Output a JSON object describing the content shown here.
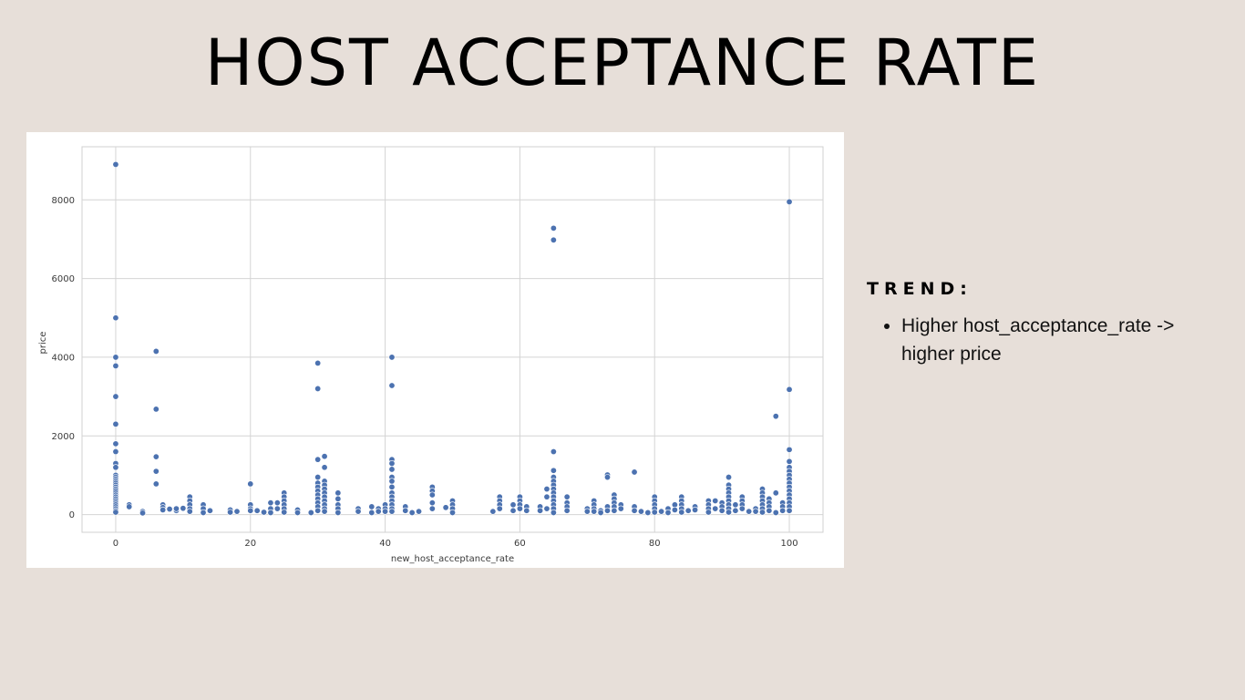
{
  "slide": {
    "title": "HOST ACCEPTANCE RATE",
    "background": "#e7dfd9"
  },
  "sidebar": {
    "heading": "TREND:",
    "bullets": [
      "Higher host_acceptance_rate -> higher price"
    ]
  },
  "chart_data": {
    "type": "scatter",
    "title": "",
    "xlabel": "new_host_acceptance_rate",
    "ylabel": "price",
    "xlim": [
      -5,
      105
    ],
    "ylim": [
      -450,
      9350
    ],
    "xticks": [
      0,
      20,
      40,
      60,
      80,
      100
    ],
    "yticks": [
      0,
      2000,
      4000,
      6000,
      8000
    ],
    "grid": true,
    "marker_color": "#4c72b0",
    "points": [
      [
        0,
        8900
      ],
      [
        0,
        5000
      ],
      [
        0,
        4000
      ],
      [
        0,
        3780
      ],
      [
        0,
        3000
      ],
      [
        0,
        2300
      ],
      [
        0,
        1800
      ],
      [
        0,
        1600
      ],
      [
        0,
        1300
      ],
      [
        0,
        1200
      ],
      [
        0,
        1000
      ],
      [
        0,
        950
      ],
      [
        0,
        900
      ],
      [
        0,
        850
      ],
      [
        0,
        800
      ],
      [
        0,
        750
      ],
      [
        0,
        700
      ],
      [
        0,
        650
      ],
      [
        0,
        600
      ],
      [
        0,
        550
      ],
      [
        0,
        500
      ],
      [
        0,
        450
      ],
      [
        0,
        400
      ],
      [
        0,
        350
      ],
      [
        0,
        300
      ],
      [
        0,
        250
      ],
      [
        0,
        200
      ],
      [
        0,
        150
      ],
      [
        0,
        100
      ],
      [
        0,
        60
      ],
      [
        2,
        250
      ],
      [
        2,
        200
      ],
      [
        4,
        80
      ],
      [
        4,
        40
      ],
      [
        6,
        4150
      ],
      [
        6,
        2680
      ],
      [
        6,
        1470
      ],
      [
        6,
        1100
      ],
      [
        6,
        780
      ],
      [
        7,
        250
      ],
      [
        7,
        180
      ],
      [
        7,
        120
      ],
      [
        8,
        140
      ],
      [
        9,
        100
      ],
      [
        9,
        150
      ],
      [
        10,
        160
      ],
      [
        11,
        450
      ],
      [
        11,
        350
      ],
      [
        11,
        250
      ],
      [
        11,
        150
      ],
      [
        11,
        80
      ],
      [
        13,
        250
      ],
      [
        13,
        150
      ],
      [
        13,
        50
      ],
      [
        14,
        100
      ],
      [
        17,
        120
      ],
      [
        17,
        60
      ],
      [
        18,
        80
      ],
      [
        20,
        780
      ],
      [
        20,
        250
      ],
      [
        20,
        150
      ],
      [
        20,
        100
      ],
      [
        21,
        100
      ],
      [
        22,
        60
      ],
      [
        23,
        300
      ],
      [
        23,
        150
      ],
      [
        23,
        50
      ],
      [
        24,
        300
      ],
      [
        24,
        150
      ],
      [
        25,
        550
      ],
      [
        25,
        450
      ],
      [
        25,
        350
      ],
      [
        25,
        250
      ],
      [
        25,
        150
      ],
      [
        25,
        60
      ],
      [
        27,
        120
      ],
      [
        27,
        50
      ],
      [
        29,
        50
      ],
      [
        30,
        3850
      ],
      [
        30,
        3200
      ],
      [
        30,
        1400
      ],
      [
        30,
        950
      ],
      [
        30,
        800
      ],
      [
        30,
        700
      ],
      [
        30,
        600
      ],
      [
        30,
        500
      ],
      [
        30,
        400
      ],
      [
        30,
        300
      ],
      [
        30,
        200
      ],
      [
        30,
        100
      ],
      [
        31,
        1480
      ],
      [
        31,
        1200
      ],
      [
        31,
        850
      ],
      [
        31,
        750
      ],
      [
        31,
        650
      ],
      [
        31,
        550
      ],
      [
        31,
        450
      ],
      [
        31,
        350
      ],
      [
        31,
        250
      ],
      [
        31,
        150
      ],
      [
        31,
        80
      ],
      [
        33,
        550
      ],
      [
        33,
        400
      ],
      [
        33,
        250
      ],
      [
        33,
        150
      ],
      [
        33,
        50
      ],
      [
        36,
        150
      ],
      [
        36,
        80
      ],
      [
        38,
        200
      ],
      [
        38,
        50
      ],
      [
        39,
        150
      ],
      [
        39,
        80
      ],
      [
        40,
        250
      ],
      [
        40,
        150
      ],
      [
        40,
        80
      ],
      [
        41,
        4000
      ],
      [
        41,
        3280
      ],
      [
        41,
        1400
      ],
      [
        41,
        1300
      ],
      [
        41,
        1150
      ],
      [
        41,
        950
      ],
      [
        41,
        850
      ],
      [
        41,
        700
      ],
      [
        41,
        550
      ],
      [
        41,
        450
      ],
      [
        41,
        350
      ],
      [
        41,
        250
      ],
      [
        41,
        150
      ],
      [
        41,
        80
      ],
      [
        43,
        200
      ],
      [
        43,
        100
      ],
      [
        44,
        50
      ],
      [
        45,
        80
      ],
      [
        47,
        700
      ],
      [
        47,
        600
      ],
      [
        47,
        500
      ],
      [
        47,
        300
      ],
      [
        47,
        150
      ],
      [
        49,
        180
      ],
      [
        50,
        350
      ],
      [
        50,
        250
      ],
      [
        50,
        150
      ],
      [
        50,
        50
      ],
      [
        56,
        80
      ],
      [
        57,
        450
      ],
      [
        57,
        350
      ],
      [
        57,
        250
      ],
      [
        57,
        150
      ],
      [
        59,
        250
      ],
      [
        59,
        100
      ],
      [
        60,
        450
      ],
      [
        60,
        350
      ],
      [
        60,
        250
      ],
      [
        60,
        150
      ],
      [
        61,
        200
      ],
      [
        61,
        100
      ],
      [
        63,
        200
      ],
      [
        63,
        100
      ],
      [
        64,
        650
      ],
      [
        64,
        450
      ],
      [
        64,
        150
      ],
      [
        65,
        7280
      ],
      [
        65,
        6980
      ],
      [
        65,
        1600
      ],
      [
        65,
        1120
      ],
      [
        65,
        950
      ],
      [
        65,
        850
      ],
      [
        65,
        750
      ],
      [
        65,
        650
      ],
      [
        65,
        550
      ],
      [
        65,
        450
      ],
      [
        65,
        350
      ],
      [
        65,
        250
      ],
      [
        65,
        150
      ],
      [
        65,
        50
      ],
      [
        67,
        450
      ],
      [
        67,
        300
      ],
      [
        67,
        200
      ],
      [
        67,
        100
      ],
      [
        70,
        150
      ],
      [
        70,
        80
      ],
      [
        71,
        350
      ],
      [
        71,
        250
      ],
      [
        71,
        150
      ],
      [
        71,
        80
      ],
      [
        72,
        100
      ],
      [
        72,
        50
      ],
      [
        73,
        1010
      ],
      [
        73,
        950
      ],
      [
        73,
        200
      ],
      [
        73,
        100
      ],
      [
        74,
        500
      ],
      [
        74,
        400
      ],
      [
        74,
        300
      ],
      [
        74,
        200
      ],
      [
        74,
        100
      ],
      [
        75,
        250
      ],
      [
        75,
        150
      ],
      [
        77,
        1080
      ],
      [
        77,
        200
      ],
      [
        77,
        100
      ],
      [
        78,
        80
      ],
      [
        79,
        50
      ],
      [
        80,
        450
      ],
      [
        80,
        350
      ],
      [
        80,
        250
      ],
      [
        80,
        150
      ],
      [
        80,
        60
      ],
      [
        81,
        80
      ],
      [
        82,
        150
      ],
      [
        82,
        50
      ],
      [
        83,
        250
      ],
      [
        83,
        120
      ],
      [
        84,
        450
      ],
      [
        84,
        350
      ],
      [
        84,
        250
      ],
      [
        84,
        150
      ],
      [
        84,
        60
      ],
      [
        85,
        100
      ],
      [
        86,
        200
      ],
      [
        86,
        120
      ],
      [
        88,
        350
      ],
      [
        88,
        250
      ],
      [
        88,
        150
      ],
      [
        88,
        60
      ],
      [
        89,
        350
      ],
      [
        89,
        150
      ],
      [
        90,
        300
      ],
      [
        90,
        200
      ],
      [
        90,
        100
      ],
      [
        91,
        950
      ],
      [
        91,
        750
      ],
      [
        91,
        650
      ],
      [
        91,
        550
      ],
      [
        91,
        450
      ],
      [
        91,
        350
      ],
      [
        91,
        250
      ],
      [
        91,
        150
      ],
      [
        91,
        60
      ],
      [
        92,
        250
      ],
      [
        92,
        100
      ],
      [
        93,
        450
      ],
      [
        93,
        350
      ],
      [
        93,
        250
      ],
      [
        93,
        150
      ],
      [
        94,
        80
      ],
      [
        95,
        150
      ],
      [
        95,
        80
      ],
      [
        96,
        650
      ],
      [
        96,
        550
      ],
      [
        96,
        450
      ],
      [
        96,
        350
      ],
      [
        96,
        250
      ],
      [
        96,
        150
      ],
      [
        96,
        60
      ],
      [
        97,
        400
      ],
      [
        97,
        300
      ],
      [
        97,
        200
      ],
      [
        97,
        100
      ],
      [
        98,
        2500
      ],
      [
        98,
        550
      ],
      [
        98,
        50
      ],
      [
        99,
        300
      ],
      [
        99,
        200
      ],
      [
        99,
        100
      ],
      [
        100,
        7950
      ],
      [
        100,
        3180
      ],
      [
        100,
        1650
      ],
      [
        100,
        1350
      ],
      [
        100,
        1200
      ],
      [
        100,
        1100
      ],
      [
        100,
        1000
      ],
      [
        100,
        900
      ],
      [
        100,
        800
      ],
      [
        100,
        700
      ],
      [
        100,
        600
      ],
      [
        100,
        500
      ],
      [
        100,
        400
      ],
      [
        100,
        300
      ],
      [
        100,
        200
      ],
      [
        100,
        100
      ]
    ]
  }
}
